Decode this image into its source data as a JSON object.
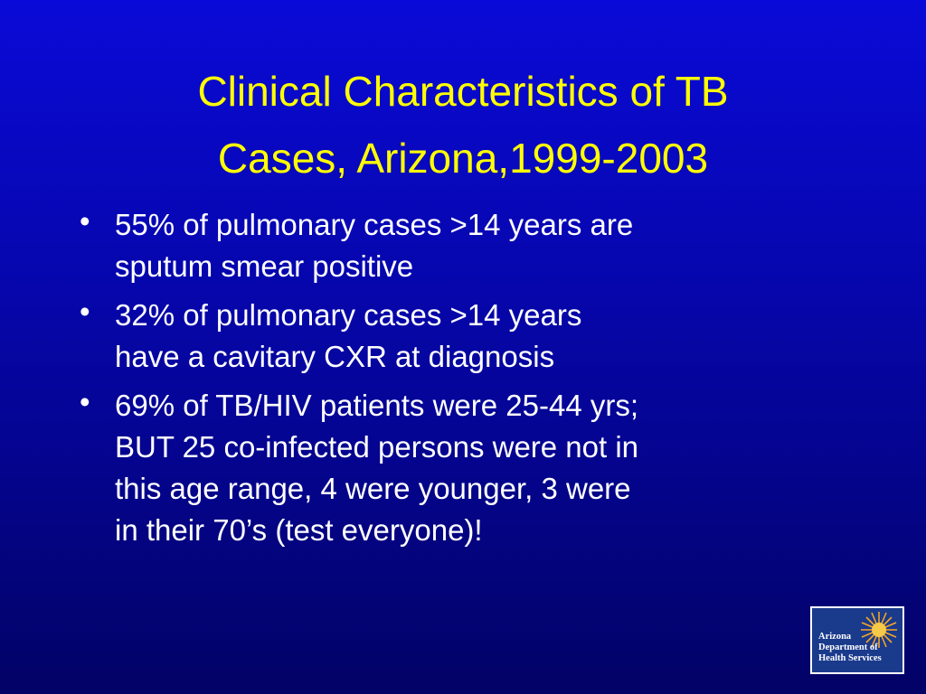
{
  "title": {
    "lines": [
      "Clinical Characteristics of TB",
      "Cases, Arizona,1999-2003"
    ]
  },
  "bullets": [
    {
      "lines": [
        "55% of pulmonary cases >14 years are",
        "sputum smear positive"
      ]
    },
    {
      "lines": [
        "32% of pulmonary cases >14 years",
        "have a cavitary CXR at diagnosis"
      ]
    },
    {
      "lines": [
        "69% of TB/HIV patients were 25-44 yrs;",
        "BUT 25 co-infected persons were not in",
        "this age range, 4 were younger, 3 were",
        "in their 70’s (test everyone)!"
      ]
    }
  ],
  "logo": {
    "lines": [
      "Arizona",
      "Department of",
      "Health Services"
    ]
  }
}
